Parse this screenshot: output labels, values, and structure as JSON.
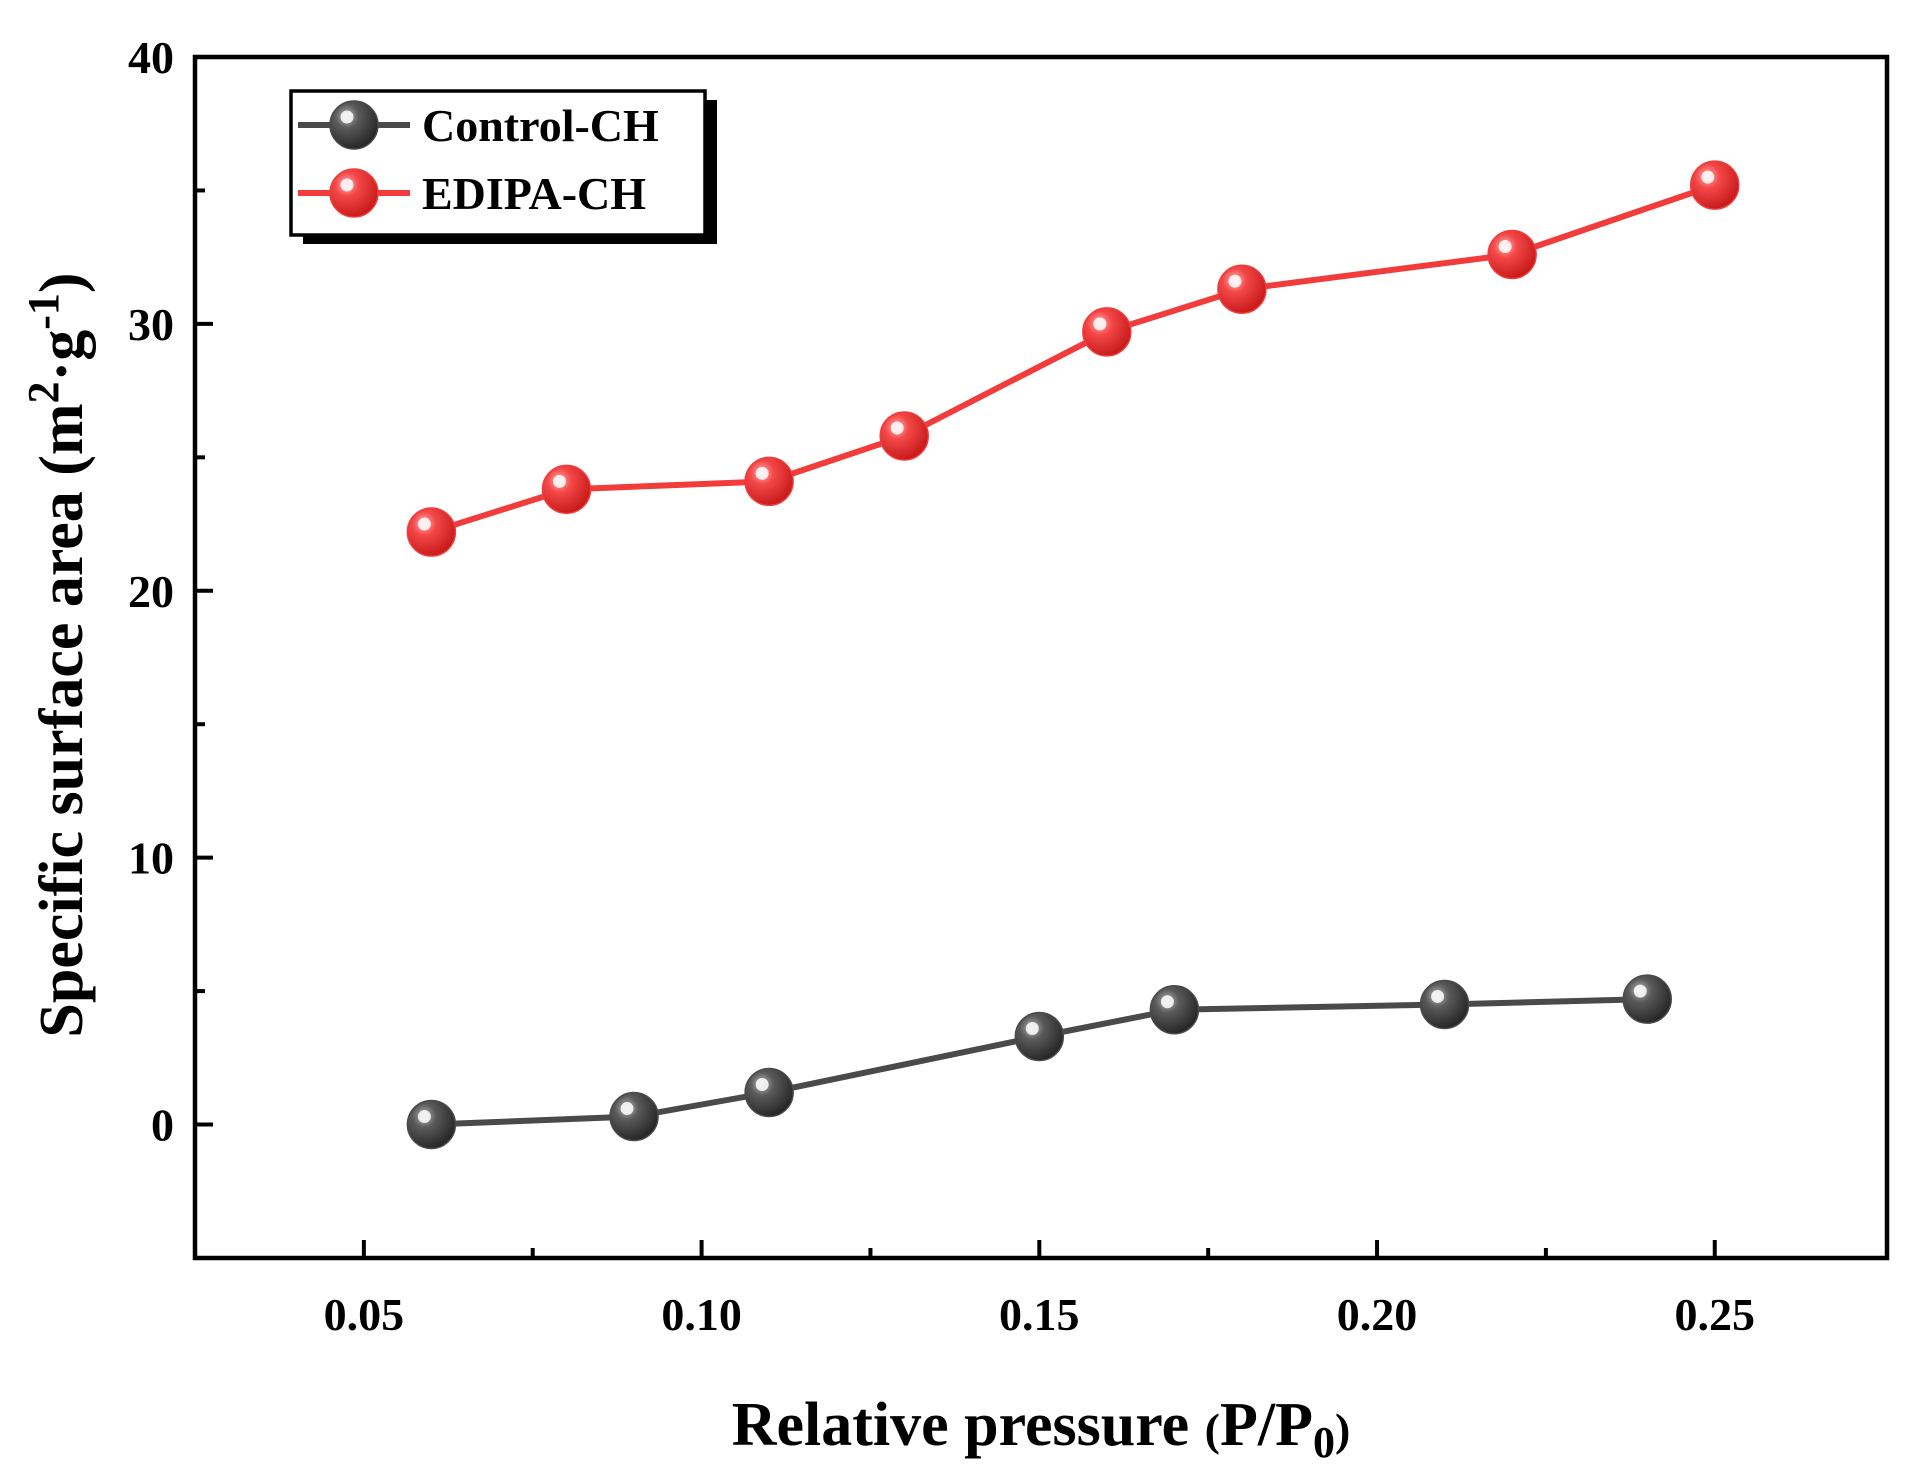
{
  "chart_data": {
    "type": "line",
    "title": "",
    "xlabel": {
      "main": "Relative pressure ",
      "paren_open": "(",
      "var": "P/P",
      "sub": "0",
      "paren_close": ")"
    },
    "ylabel": {
      "main": "Specific surface area (m",
      "sup1": "2",
      "mid": "·g",
      "sup2": "-1",
      "end": ")"
    },
    "xlim": [
      0.025,
      0.2755
    ],
    "ylim": [
      -5,
      40
    ],
    "x_ticks": [
      {
        "value": 0.05,
        "label": "0.05"
      },
      {
        "value": 0.1,
        "label": "0.10"
      },
      {
        "value": 0.15,
        "label": "0.15"
      },
      {
        "value": 0.2,
        "label": "0.20"
      },
      {
        "value": 0.25,
        "label": "0.25"
      }
    ],
    "x_minor_ticks": [
      0.075,
      0.125,
      0.175,
      0.225
    ],
    "y_ticks": [
      {
        "value": 0,
        "label": "0"
      },
      {
        "value": 10,
        "label": "10"
      },
      {
        "value": 20,
        "label": "20"
      },
      {
        "value": 30,
        "label": "30"
      },
      {
        "value": 40,
        "label": "40"
      }
    ],
    "y_minor_ticks": [
      5,
      15,
      25,
      35
    ],
    "legend_position": "top-left",
    "series": [
      {
        "name": "Control-CH",
        "color": "#4a4a4a",
        "x": [
          0.06,
          0.09,
          0.11,
          0.15,
          0.17,
          0.21,
          0.24
        ],
        "y": [
          0.0,
          0.3,
          1.2,
          3.3,
          4.3,
          4.5,
          4.7
        ]
      },
      {
        "name": "EDIPA-CH",
        "color": "#f23b3b",
        "x": [
          0.06,
          0.08,
          0.11,
          0.13,
          0.16,
          0.18,
          0.22,
          0.25
        ],
        "y": [
          22.2,
          23.8,
          24.1,
          25.8,
          29.7,
          31.3,
          32.6,
          35.2
        ]
      }
    ]
  }
}
